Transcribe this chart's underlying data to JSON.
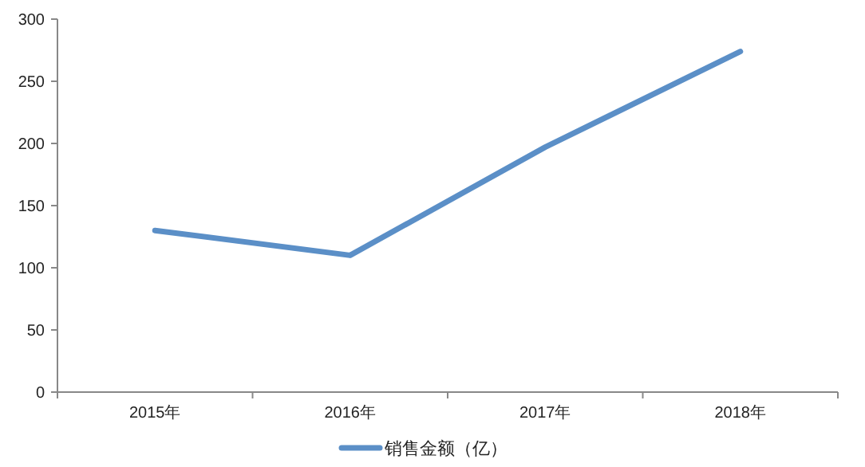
{
  "chart_data": {
    "type": "line",
    "categories": [
      "2015年",
      "2016年",
      "2017年",
      "2018年"
    ],
    "series": [
      {
        "name": "销售金额（亿）",
        "color": "#5b8fc7",
        "values": [
          130,
          110,
          197,
          274
        ]
      }
    ],
    "ylim": [
      0,
      300
    ],
    "yticks": [
      0,
      50,
      100,
      150,
      200,
      250,
      300
    ],
    "grid": false,
    "legend": "bottom",
    "marker": "none",
    "line_style": "solid"
  }
}
